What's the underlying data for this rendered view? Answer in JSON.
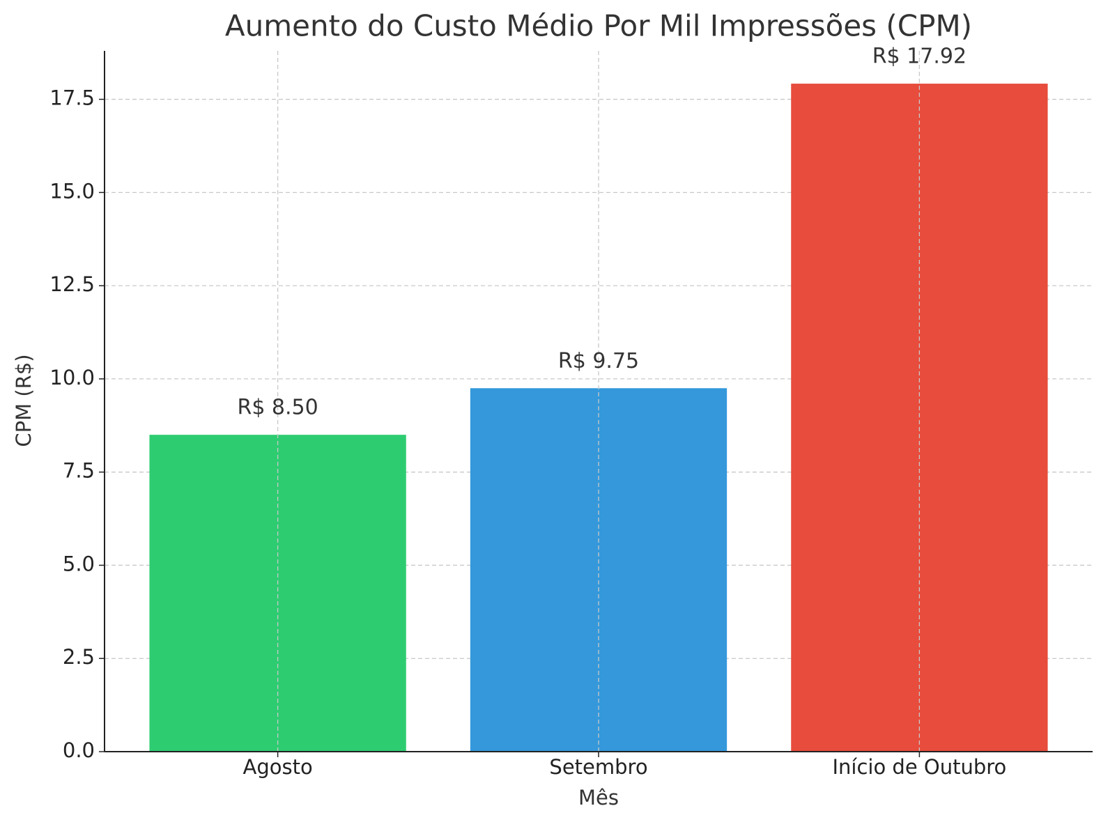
{
  "chart_data": {
    "type": "bar",
    "title": "Aumento do Custo Médio Por Mil Impressões (CPM)",
    "x_label": "Mês",
    "y_label": "CPM (R$)",
    "categories": [
      "Agosto",
      "Setembro",
      "Início de Outubro"
    ],
    "values": [
      8.5,
      9.75,
      17.92
    ],
    "value_labels": [
      "R$ 8.50",
      "R$ 9.75",
      "R$ 17.92"
    ],
    "colors": [
      "#2ecc71",
      "#3498db",
      "#e74c3c"
    ],
    "ylim": [
      0,
      18.8
    ],
    "yticks": [
      {
        "value": 0,
        "label": "0.0"
      },
      2.5,
      {
        "value": 5,
        "label": "5.0"
      },
      7.5,
      {
        "value": 10,
        "label": "10.0"
      },
      12.5,
      {
        "value": 15,
        "label": "15.0"
      },
      17.5
    ],
    "grid": true
  }
}
